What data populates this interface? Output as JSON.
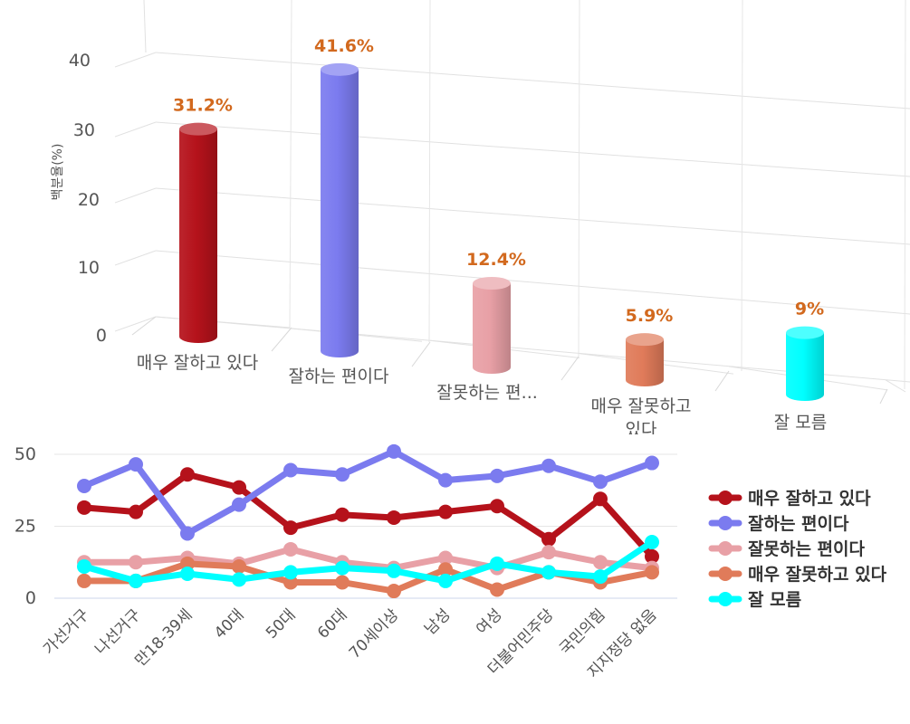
{
  "chart_data": [
    {
      "type": "bar",
      "style": "3d-cylinder",
      "ylabel": "백분율(%)",
      "ylim": [
        0,
        45
      ],
      "yticks": [
        "0",
        "10",
        "20",
        "30",
        "40"
      ],
      "categories": [
        "매우 잘하고 있다",
        "잘하는 편이다",
        "잘못하는 편...",
        "매우 잘못하고 있다",
        "잘 모름"
      ],
      "values": [
        31.2,
        41.6,
        12.4,
        5.9,
        9
      ],
      "labels": [
        "31.2%",
        "41.6%",
        "12.4%",
        "5.9%",
        "9%"
      ],
      "colors": [
        "#b5121b",
        "#7b7bef",
        "#e8a0a6",
        "#e07b5a",
        "#00ffff"
      ],
      "grid": true
    },
    {
      "type": "line",
      "ylim": [
        0,
        55
      ],
      "yticks": [
        "0",
        "25",
        "50"
      ],
      "categories": [
        "가선거구",
        "나선거구",
        "만18-39세",
        "40대",
        "50대",
        "60대",
        "70세이상",
        "남성",
        "여성",
        "더불어민주당",
        "국민의힘",
        "지지정당 없음"
      ],
      "series": [
        {
          "name": "매우 잘하고 있다",
          "color": "#b5121b",
          "values": [
            31.5,
            30,
            43,
            38.5,
            24.5,
            29,
            28,
            30,
            32,
            20.5,
            34.5,
            14.5
          ]
        },
        {
          "name": "잘하는 편이다",
          "color": "#7b7bef",
          "values": [
            39,
            46.5,
            22.5,
            32.5,
            44.5,
            43,
            51,
            41,
            42.5,
            46,
            40.5,
            47
          ]
        },
        {
          "name": "잘못하는 편이다",
          "color": "#e8a0a6",
          "values": [
            12.5,
            12.5,
            14,
            12,
            17,
            12.5,
            10.5,
            14,
            10.5,
            16,
            12.5,
            10.5
          ]
        },
        {
          "name": "매우 잘못하고 있다",
          "color": "#e07b5a",
          "values": [
            6,
            6,
            12,
            11,
            5.5,
            5.5,
            2.5,
            10,
            3,
            9,
            5.5,
            9
          ]
        },
        {
          "name": "잘 모름",
          "color": "#00ffff",
          "values": [
            11,
            6,
            8.5,
            6.5,
            9,
            10.5,
            9.5,
            6,
            12,
            9,
            7.5,
            19.5
          ]
        }
      ],
      "legend": "right",
      "grid": true
    }
  ]
}
